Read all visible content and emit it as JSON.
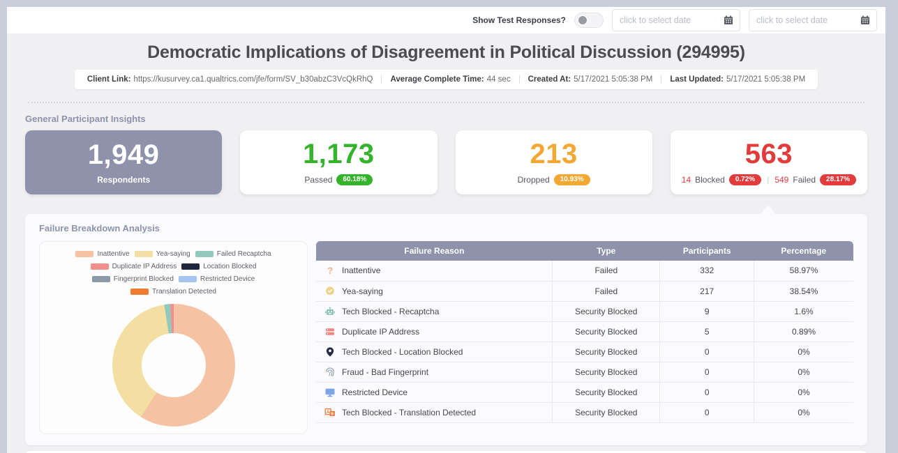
{
  "topbar": {
    "toggle_label": "Show Test Responses?",
    "date_from_placeholder": "click to select date",
    "date_to_placeholder": "click to select date"
  },
  "header": {
    "title": "Democratic Implications of Disagreement in Political Discussion (294995)",
    "client_link_label": "Client Link:",
    "client_link_url": "https://kusurvey.ca1.qualtrics.com/jfe/form/SV_b30abzC3VcQkRhQ",
    "avg_time_label": "Average Complete Time:",
    "avg_time_value": "44 sec",
    "created_label": "Created At:",
    "created_value": "5/17/2021 5:05:38 PM",
    "updated_label": "Last Updated:",
    "updated_value": "5/17/2021 5:05:38 PM"
  },
  "insights": {
    "section_title": "General Participant Insights",
    "respondents": {
      "value": "1,949",
      "label": "Respondents"
    },
    "passed": {
      "value": "1,173",
      "label": "Passed",
      "badge": "60.18%"
    },
    "dropped": {
      "value": "213",
      "label": "Dropped",
      "badge": "10.93%"
    },
    "blocked_failed": {
      "value": "563",
      "blocked_count": "14",
      "blocked_label": "Blocked",
      "blocked_badge": "0.72%",
      "divider": "|",
      "failed_count": "549",
      "failed_label": "Failed",
      "failed_badge": "28.17%"
    }
  },
  "failure_breakdown": {
    "section_title": "Failure Breakdown Analysis",
    "table": {
      "headers": [
        "Failure Reason",
        "Type",
        "Participants",
        "Percentage"
      ],
      "rows": [
        {
          "icon": "question-icon",
          "reason": "Inattentive",
          "type": "Failed",
          "participants": "332",
          "percentage": "58.97%"
        },
        {
          "icon": "speech-bubble-icon",
          "reason": "Yea-saying",
          "type": "Failed",
          "participants": "217",
          "percentage": "38.54%"
        },
        {
          "icon": "robot-icon",
          "reason": "Tech Blocked - Recaptcha",
          "type": "Security Blocked",
          "participants": "9",
          "percentage": "1.6%"
        },
        {
          "icon": "server-icon",
          "reason": "Duplicate IP Address",
          "type": "Security Blocked",
          "participants": "5",
          "percentage": "0.89%"
        },
        {
          "icon": "location-pin-icon",
          "reason": "Tech Blocked - Location Blocked",
          "type": "Security Blocked",
          "participants": "0",
          "percentage": "0%"
        },
        {
          "icon": "fingerprint-icon",
          "reason": "Fraud - Bad Fingerprint",
          "type": "Security Blocked",
          "participants": "0",
          "percentage": "0%"
        },
        {
          "icon": "monitor-icon",
          "reason": "Restricted Device",
          "type": "Security Blocked",
          "participants": "0",
          "percentage": "0%"
        },
        {
          "icon": "translation-icon",
          "reason": "Tech Blocked - Translation Detected",
          "type": "Security Blocked",
          "participants": "0",
          "percentage": "0%"
        }
      ]
    }
  },
  "chart_data": {
    "type": "pie",
    "donut": true,
    "title": "Failure Breakdown Analysis",
    "labels": [
      "Inattentive",
      "Yea-saying",
      "Failed Recaptcha",
      "Duplicate IP Address",
      "Location Blocked",
      "Fingerprint Blocked",
      "Restricted Device",
      "Translation Detected"
    ],
    "values": [
      332,
      217,
      9,
      5,
      0,
      0,
      0,
      0
    ],
    "percentages": [
      58.97,
      38.54,
      1.6,
      0.89,
      0,
      0,
      0,
      0
    ],
    "colors": [
      "#f5c3a4",
      "#f3dfa2",
      "#93c9bc",
      "#f28f8c",
      "#20243d",
      "#8c9aa8",
      "#a6c4f0",
      "#ef7b32"
    ],
    "legend_position": "top"
  },
  "theme": {
    "slate": "#8e92ab",
    "green": "#35b32d",
    "orange": "#f5a733",
    "red": "#e23b3b",
    "page_bg": "#f0f0f2",
    "frame": "#c9cedb"
  }
}
